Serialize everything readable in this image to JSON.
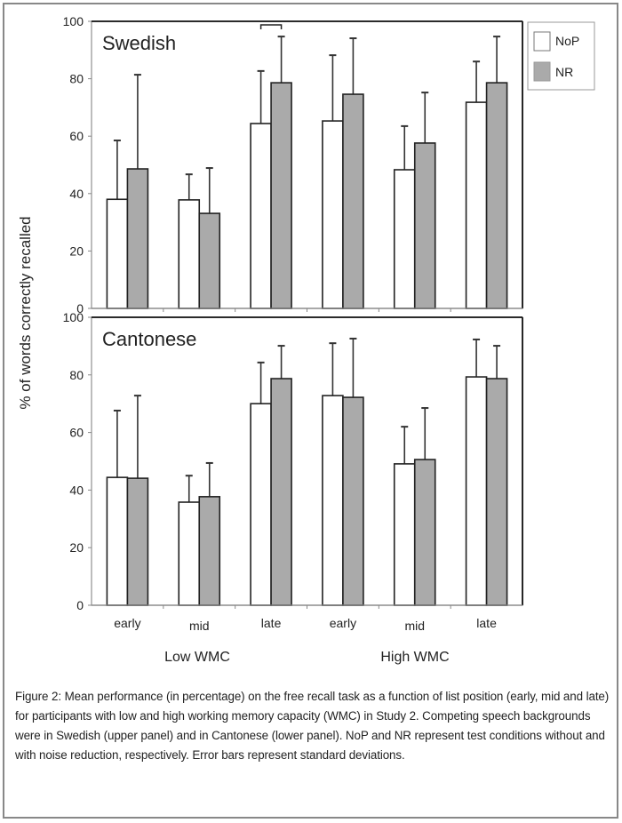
{
  "chart_data": [
    {
      "type": "bar",
      "title": "Swedish",
      "ylabel": "% of words correctly recalled",
      "ylim": [
        0,
        100
      ],
      "yticks": [
        "0",
        "20",
        "40",
        "60",
        "80",
        "100"
      ],
      "categories": [
        "early",
        "mid",
        "late",
        "early",
        "mid",
        "late"
      ],
      "groups": [
        "Low WMC",
        "High WMC"
      ],
      "series": [
        {
          "name": "NoP",
          "color": "#ffffff",
          "values": [
            38.0,
            37.8,
            64.4,
            65.3,
            48.3,
            71.8
          ],
          "error_top": [
            58.5,
            46.7,
            82.7,
            88.2,
            63.5,
            86.0
          ]
        },
        {
          "name": "NR",
          "color": "#aaaaaa",
          "values": [
            48.6,
            33.1,
            78.6,
            74.6,
            57.6,
            78.6
          ],
          "error_top": [
            81.4,
            48.9,
            94.7,
            94.1,
            75.2,
            94.7
          ]
        }
      ],
      "annotation": "significance bracket over Low WMC late"
    },
    {
      "type": "bar",
      "title": "Cantonese",
      "ylabel": "% of words correctly recalled",
      "ylim": [
        0,
        100
      ],
      "yticks": [
        "0",
        "20",
        "40",
        "60",
        "80",
        "100"
      ],
      "categories": [
        "early",
        "mid",
        "late",
        "early",
        "mid",
        "late"
      ],
      "groups": [
        "Low WMC",
        "High WMC"
      ],
      "series": [
        {
          "name": "NoP",
          "color": "#ffffff",
          "values": [
            44.4,
            35.8,
            70.0,
            72.8,
            49.1,
            79.3
          ],
          "error_top": [
            67.6,
            45.0,
            84.3,
            91.0,
            62.0,
            92.3
          ]
        },
        {
          "name": "NR",
          "color": "#aaaaaa",
          "values": [
            44.1,
            37.7,
            78.7,
            72.2,
            50.6,
            78.7
          ],
          "error_top": [
            72.8,
            49.4,
            90.1,
            92.6,
            68.5,
            90.1
          ]
        }
      ]
    }
  ],
  "legend": {
    "items": [
      {
        "label": "NoP",
        "color": "#ffffff"
      },
      {
        "label": "NR",
        "color": "#aaaaaa"
      }
    ]
  },
  "axis": {
    "ylabel": "% of words correctly recalled",
    "group_labels": [
      "Low WMC",
      "High WMC"
    ]
  },
  "caption": "Figure 2: Mean performance (in percentage) on the free recall task as a function of list position (early, mid and late) for participants with low and high working memory capacity (WMC) in Study 2. Competing speech backgrounds were in Swedish (upper panel) and in Cantonese (lower panel). NoP and NR represent test conditions without and with noise reduction, respectively. Error bars represent standard deviations."
}
